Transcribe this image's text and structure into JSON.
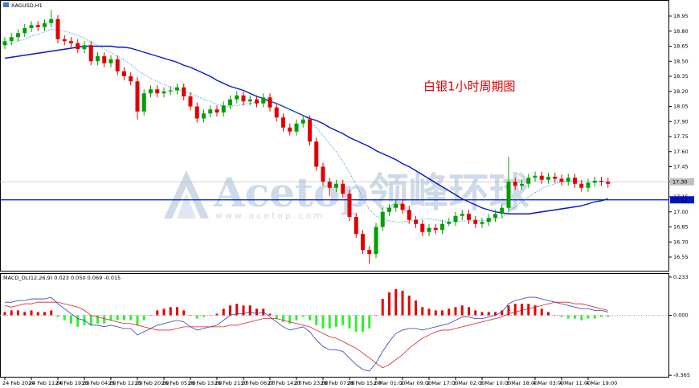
{
  "watermark": {
    "text": "Acetop领峰环球",
    "url": "www.acetop.com"
  },
  "chart_data": [
    {
      "type": "candlestick",
      "title": "XAGUSD,H1",
      "annotation": "白银1小时周期图",
      "up_color": "#00a000",
      "down_color": "#e00000",
      "categories": [
        "24 Feb 2020",
        null,
        null,
        null,
        "24 Feb 11:00",
        null,
        null,
        null,
        "24 Feb 19:00",
        null,
        null,
        null,
        "25 Feb 04:00",
        null,
        null,
        null,
        "25 Feb 12:00",
        null,
        null,
        null,
        "25 Feb 20:00",
        null,
        null,
        null,
        "26 Feb 05:00",
        null,
        null,
        null,
        "26 Feb 13:00",
        null,
        null,
        null,
        "26 Feb 21:00",
        null,
        null,
        null,
        "27 Feb 06:00",
        null,
        null,
        null,
        "27 Feb 14:00",
        null,
        null,
        null,
        "27 Feb 23:00",
        null,
        null,
        null,
        "28 Feb 07:00",
        null,
        null,
        null,
        "28 Feb 15:00",
        null,
        null,
        null,
        "2 Mar 01:00",
        null,
        null,
        null,
        "2 Mar 09:00",
        null,
        null,
        null,
        "2 Mar 17:00",
        null,
        null,
        null,
        "3 Mar 02:00",
        null,
        null,
        null,
        "3 Mar 10:00",
        null,
        null,
        null,
        "3 Mar 18:00",
        null,
        null,
        null,
        "4 Mar 03:00",
        null,
        null,
        null,
        "4 Mar 11:00",
        null,
        null,
        null,
        "4 Mar 19:00",
        null,
        null,
        null
      ],
      "open": [
        18.66,
        18.7,
        18.74,
        18.78,
        18.83,
        18.86,
        18.84,
        18.88,
        18.92,
        18.72,
        18.7,
        18.68,
        18.62,
        18.66,
        18.5,
        18.55,
        18.48,
        18.52,
        18.4,
        18.35,
        18.3,
        18.0,
        18.18,
        18.22,
        18.18,
        18.2,
        18.21,
        18.24,
        18.15,
        18.05,
        17.93,
        17.98,
        18.02,
        17.99,
        18.06,
        18.12,
        18.16,
        18.1,
        18.12,
        18.08,
        18.14,
        18.04,
        17.94,
        17.84,
        17.8,
        17.88,
        17.92,
        17.7,
        17.45,
        17.3,
        17.24,
        17.28,
        17.18,
        16.95,
        16.78,
        16.62,
        16.58,
        16.85,
        17.0,
        17.04,
        17.08,
        17.02,
        16.92,
        16.88,
        16.8,
        16.84,
        16.82,
        16.88,
        16.9,
        16.96,
        16.98,
        16.92,
        16.88,
        16.9,
        16.94,
        16.98,
        17.04,
        17.3,
        17.26,
        17.28,
        17.34,
        17.36,
        17.32,
        17.35,
        17.33,
        17.3,
        17.34,
        17.28,
        17.24,
        17.29,
        17.31,
        17.3
      ],
      "high": [
        18.74,
        18.78,
        18.82,
        18.87,
        18.9,
        18.9,
        18.92,
        19.01,
        18.96,
        18.76,
        18.74,
        18.72,
        18.7,
        18.7,
        18.59,
        18.59,
        18.56,
        18.56,
        18.44,
        18.39,
        18.34,
        18.22,
        18.26,
        18.26,
        18.24,
        18.25,
        18.28,
        18.28,
        18.19,
        18.09,
        18.02,
        18.06,
        18.06,
        18.1,
        18.16,
        18.2,
        18.2,
        18.16,
        18.16,
        18.18,
        18.18,
        18.08,
        17.98,
        17.88,
        17.92,
        17.96,
        17.96,
        17.74,
        17.49,
        17.34,
        17.32,
        17.32,
        17.22,
        16.99,
        16.82,
        16.66,
        16.89,
        17.04,
        17.08,
        17.12,
        17.12,
        17.06,
        16.96,
        16.92,
        16.88,
        16.88,
        16.92,
        16.94,
        17.0,
        17.02,
        17.02,
        16.96,
        16.94,
        16.98,
        17.02,
        17.08,
        17.55,
        17.34,
        17.32,
        17.38,
        17.4,
        17.4,
        17.39,
        17.39,
        17.37,
        17.38,
        17.38,
        17.32,
        17.33,
        17.35,
        17.35,
        17.34
      ],
      "low": [
        18.62,
        18.66,
        18.7,
        18.74,
        18.79,
        18.8,
        18.8,
        18.84,
        18.68,
        18.66,
        18.64,
        18.58,
        18.58,
        18.46,
        18.46,
        18.44,
        18.44,
        18.36,
        18.31,
        18.26,
        17.92,
        17.96,
        18.14,
        18.14,
        18.14,
        18.16,
        18.17,
        18.11,
        18.01,
        17.89,
        17.89,
        17.94,
        17.95,
        17.95,
        18.02,
        18.08,
        18.06,
        18.06,
        18.04,
        18.04,
        18.0,
        17.9,
        17.8,
        17.76,
        17.76,
        17.84,
        17.66,
        17.41,
        17.26,
        17.16,
        17.2,
        17.14,
        16.91,
        16.74,
        16.58,
        16.48,
        16.54,
        16.81,
        16.96,
        17.0,
        16.98,
        16.88,
        16.84,
        16.76,
        16.76,
        16.78,
        16.78,
        16.86,
        16.86,
        16.92,
        16.88,
        16.84,
        16.84,
        16.86,
        16.9,
        16.94,
        17.0,
        17.22,
        17.22,
        17.24,
        17.3,
        17.28,
        17.28,
        17.29,
        17.26,
        17.26,
        17.24,
        17.2,
        17.2,
        17.25,
        17.26,
        17.24
      ],
      "close": [
        18.7,
        18.74,
        18.78,
        18.83,
        18.86,
        18.84,
        18.88,
        18.92,
        18.72,
        18.7,
        18.68,
        18.62,
        18.66,
        18.5,
        18.55,
        18.48,
        18.52,
        18.4,
        18.35,
        18.3,
        18.0,
        18.18,
        18.22,
        18.18,
        18.2,
        18.21,
        18.24,
        18.15,
        18.05,
        17.93,
        17.98,
        18.02,
        17.99,
        18.06,
        18.12,
        18.16,
        18.1,
        18.12,
        18.08,
        18.14,
        18.04,
        17.94,
        17.84,
        17.8,
        17.88,
        17.92,
        17.7,
        17.45,
        17.3,
        17.24,
        17.28,
        17.18,
        16.95,
        16.78,
        16.62,
        16.58,
        16.85,
        17.0,
        17.04,
        17.08,
        17.02,
        16.92,
        16.88,
        16.8,
        16.84,
        16.82,
        16.88,
        16.9,
        16.96,
        16.98,
        16.92,
        16.88,
        16.9,
        16.94,
        16.98,
        17.04,
        17.3,
        17.26,
        17.28,
        17.34,
        17.36,
        17.32,
        17.35,
        17.33,
        17.3,
        17.34,
        17.28,
        17.24,
        17.29,
        17.31,
        17.3,
        17.28
      ],
      "lines": [
        {
          "color": "#0018c8",
          "style": "solid",
          "values": [
            18.53,
            18.54,
            18.55,
            18.56,
            18.57,
            18.58,
            18.59,
            18.6,
            18.61,
            18.62,
            18.63,
            18.64,
            18.65,
            18.65,
            18.65,
            18.65,
            18.65,
            18.64,
            18.64,
            18.63,
            18.61,
            18.59,
            18.57,
            18.55,
            18.53,
            18.51,
            18.49,
            18.46,
            18.44,
            18.41,
            18.38,
            18.35,
            18.31,
            18.28,
            18.25,
            18.23,
            18.21,
            18.18,
            18.15,
            18.13,
            18.1,
            18.08,
            18.05,
            18.02,
            17.99,
            17.96,
            17.93,
            17.91,
            17.88,
            17.84,
            17.81,
            17.78,
            17.74,
            17.71,
            17.68,
            17.65,
            17.61,
            17.58,
            17.55,
            17.52,
            17.48,
            17.45,
            17.41,
            17.37,
            17.33,
            17.29,
            17.25,
            17.21,
            17.17,
            17.13,
            17.1,
            17.07,
            17.04,
            17.02,
            17.0,
            16.99,
            16.98,
            16.98,
            16.98,
            16.98,
            16.99,
            17.0,
            17.01,
            17.02,
            17.03,
            17.04,
            17.05,
            17.06,
            17.08,
            17.1,
            17.11,
            17.13
          ]
        },
        {
          "color": "#3399ee",
          "style": "dotted",
          "values": [
            18.66,
            18.68,
            18.7,
            18.72,
            18.75,
            18.77,
            18.79,
            18.82,
            18.81,
            18.8,
            18.78,
            18.76,
            18.73,
            18.69,
            18.66,
            18.62,
            18.59,
            18.55,
            18.51,
            18.47,
            18.41,
            18.37,
            18.33,
            18.3,
            18.27,
            18.24,
            18.22,
            18.2,
            18.18,
            18.15,
            18.12,
            18.1,
            18.07,
            18.05,
            18.05,
            18.06,
            18.07,
            18.08,
            18.09,
            18.1,
            18.1,
            18.08,
            18.05,
            18.02,
            17.99,
            17.96,
            17.91,
            17.84,
            17.76,
            17.68,
            17.6,
            17.5,
            17.39,
            17.27,
            17.14,
            17.02,
            16.96,
            16.93,
            16.91,
            16.9,
            16.9,
            16.91,
            16.92,
            16.93,
            16.93,
            16.92,
            16.91,
            16.9,
            16.9,
            16.91,
            16.91,
            16.91,
            16.91,
            16.92,
            16.93,
            16.94,
            17.0,
            17.05,
            17.1,
            17.15,
            17.19,
            17.23,
            17.26,
            17.28,
            17.3,
            17.31,
            17.31,
            17.3,
            17.3,
            17.3,
            17.3,
            17.3
          ]
        }
      ],
      "hlines": [
        {
          "value": 17.3,
          "label": "17.30",
          "color": "#c0c0c0",
          "text_color": "#000000"
        },
        {
          "value": 17.12,
          "color": "#0018c8",
          "text_color": "#ffffff"
        }
      ],
      "ylim": [
        16.414,
        19.11
      ],
      "yticks": [
        18.95,
        {
          "value": 18.8,
          "label": "18.80"
        },
        18.65,
        {
          "value": 18.5,
          "label": "18.50"
        },
        18.35,
        {
          "value": 18.2,
          "label": "18.20"
        },
        18.05,
        {
          "value": 17.9,
          "label": "17.90"
        },
        17.75,
        {
          "value": 17.6,
          "label": "17.60"
        },
        17.45,
        {
          "value": 17.3,
          "label": "17.30"
        },
        17.15,
        {
          "value": 17.0,
          "label": "17.00"
        },
        16.85,
        {
          "value": 16.7,
          "label": "16.70"
        },
        16.55
      ]
    },
    {
      "type": "macd",
      "title": "MACD_DL(12,26,9) 0.023 0.050 0.069 -0.015",
      "up_color": "#e60000",
      "down_color": "#33ee33",
      "histogram": [
        0.02,
        0.03,
        0.03,
        0.02,
        0.03,
        0.02,
        0.02,
        0.03,
        -0.01,
        -0.03,
        -0.05,
        -0.07,
        -0.06,
        -0.06,
        -0.05,
        -0.05,
        -0.03,
        -0.03,
        -0.03,
        -0.03,
        -0.06,
        -0.03,
        0.0,
        0.03,
        0.04,
        0.05,
        0.05,
        0.03,
        0.0,
        -0.02,
        -0.01,
        0.0,
        0.01,
        0.04,
        0.06,
        0.07,
        0.06,
        0.06,
        0.04,
        0.04,
        0.01,
        -0.02,
        -0.04,
        -0.05,
        -0.03,
        -0.01,
        -0.03,
        -0.06,
        -0.08,
        -0.08,
        -0.07,
        -0.06,
        -0.08,
        -0.1,
        -0.1,
        -0.08,
        0.0,
        0.1,
        0.14,
        0.16,
        0.15,
        0.12,
        0.09,
        0.05,
        0.04,
        0.03,
        0.03,
        0.04,
        0.05,
        0.06,
        0.05,
        0.03,
        0.02,
        0.02,
        0.02,
        0.03,
        0.06,
        0.07,
        0.07,
        0.07,
        0.06,
        0.04,
        0.02,
        0.0,
        -0.01,
        -0.02,
        -0.02,
        -0.03,
        -0.02,
        -0.02,
        -0.01,
        -0.01
      ],
      "main": {
        "color": "#3040b0",
        "values": [
          0.08,
          0.08,
          0.09,
          0.09,
          0.1,
          0.1,
          0.1,
          0.11,
          0.07,
          0.04,
          0.01,
          -0.02,
          -0.03,
          -0.06,
          -0.06,
          -0.07,
          -0.06,
          -0.07,
          -0.08,
          -0.08,
          -0.12,
          -0.1,
          -0.08,
          -0.06,
          -0.05,
          -0.04,
          -0.03,
          -0.04,
          -0.07,
          -0.09,
          -0.08,
          -0.07,
          -0.06,
          -0.03,
          0.0,
          0.01,
          0.01,
          0.02,
          0.01,
          0.02,
          -0.01,
          -0.04,
          -0.07,
          -0.09,
          -0.08,
          -0.07,
          -0.1,
          -0.15,
          -0.19,
          -0.21,
          -0.21,
          -0.22,
          -0.26,
          -0.3,
          -0.33,
          -0.34,
          -0.29,
          -0.22,
          -0.16,
          -0.11,
          -0.09,
          -0.08,
          -0.08,
          -0.09,
          -0.08,
          -0.07,
          -0.06,
          -0.05,
          -0.03,
          -0.01,
          -0.01,
          -0.02,
          -0.02,
          -0.01,
          0.0,
          0.02,
          0.07,
          0.09,
          0.1,
          0.11,
          0.11,
          0.1,
          0.09,
          0.08,
          0.07,
          0.06,
          0.05,
          0.04,
          0.04,
          0.03,
          0.03,
          0.02
        ]
      },
      "signal": {
        "color": "#e02020",
        "values": [
          0.06,
          0.05,
          0.06,
          0.07,
          0.07,
          0.08,
          0.08,
          0.08,
          0.08,
          0.07,
          0.06,
          0.05,
          0.03,
          0.0,
          -0.01,
          -0.02,
          -0.03,
          -0.04,
          -0.05,
          -0.05,
          -0.06,
          -0.07,
          -0.08,
          -0.09,
          -0.09,
          -0.09,
          -0.08,
          -0.07,
          -0.07,
          -0.07,
          -0.07,
          -0.07,
          -0.07,
          -0.07,
          -0.06,
          -0.06,
          -0.05,
          -0.04,
          -0.03,
          -0.02,
          -0.02,
          -0.02,
          -0.03,
          -0.04,
          -0.05,
          -0.06,
          -0.07,
          -0.09,
          -0.11,
          -0.13,
          -0.14,
          -0.16,
          -0.18,
          -0.2,
          -0.23,
          -0.26,
          -0.29,
          -0.32,
          -0.3,
          -0.27,
          -0.24,
          -0.2,
          -0.17,
          -0.14,
          -0.12,
          -0.1,
          -0.09,
          -0.09,
          -0.08,
          -0.07,
          -0.06,
          -0.05,
          -0.04,
          -0.03,
          -0.02,
          -0.01,
          0.01,
          0.02,
          0.03,
          0.04,
          0.05,
          0.06,
          0.07,
          0.08,
          0.08,
          0.08,
          0.07,
          0.07,
          0.06,
          0.05,
          0.04,
          0.03
        ]
      },
      "ylim": [
        -0.374,
        0.252
      ],
      "yticks": [
        0.233,
        {
          "value": 0,
          "label": "0.000"
        },
        -0.365
      ]
    }
  ]
}
